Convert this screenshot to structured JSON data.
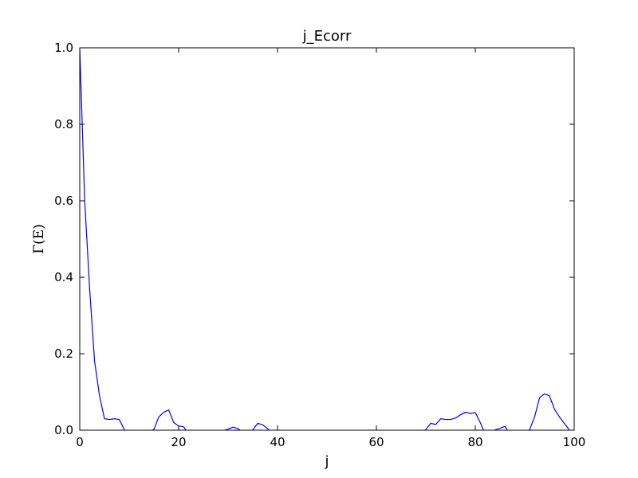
{
  "chart_data": {
    "type": "line",
    "title": "j_Ecorr",
    "xlabel": "j",
    "ylabel": "Γ(E)",
    "xlim": [
      0,
      100
    ],
    "ylim": [
      0.0,
      1.0
    ],
    "xticks": [
      0,
      20,
      40,
      60,
      80,
      100
    ],
    "xtick_labels": [
      "0",
      "20",
      "40",
      "60",
      "80",
      "100"
    ],
    "yticks": [
      0.0,
      0.2,
      0.4,
      0.6,
      0.8,
      1.0
    ],
    "ytick_labels": [
      "0.0",
      "0.2",
      "0.4",
      "0.6",
      "0.8",
      "1.0"
    ],
    "grid": false,
    "line_color": "#0000ff",
    "series": [
      {
        "x": [
          0,
          1,
          2,
          3,
          4,
          5,
          6,
          7,
          8,
          9,
          10,
          11,
          12,
          13,
          14,
          15,
          16,
          17,
          18,
          19,
          20,
          21,
          22,
          23,
          24,
          25,
          26,
          27,
          28,
          29,
          30,
          31,
          32,
          33,
          34,
          35,
          36,
          37,
          38,
          39,
          40,
          41,
          42,
          43,
          44,
          45,
          46,
          47,
          48,
          49,
          50,
          51,
          52,
          53,
          54,
          55,
          56,
          57,
          58,
          59,
          60,
          61,
          62,
          63,
          64,
          65,
          66,
          67,
          68,
          69,
          70,
          71,
          72,
          73,
          74,
          75,
          76,
          77,
          78,
          79,
          80,
          81,
          82,
          83,
          84,
          85,
          86,
          87,
          88,
          89,
          90,
          91,
          92,
          93,
          94,
          95,
          96,
          97,
          98,
          99
        ],
        "values": [
          1.0,
          0.6,
          0.37,
          0.18,
          0.09,
          0.03,
          0.028,
          0.03,
          0.028,
          0.002,
          -0.02,
          -0.03,
          -0.02,
          -0.01,
          -0.005,
          0.002,
          0.035,
          0.047,
          0.053,
          0.02,
          0.011,
          0.009,
          -0.01,
          -0.02,
          -0.025,
          -0.02,
          -0.015,
          -0.01,
          -0.005,
          -0.002,
          0.003,
          0.008,
          0.004,
          -0.005,
          -0.006,
          0.001,
          0.018,
          0.014,
          0.004,
          -0.01,
          -0.02,
          -0.03,
          -0.035,
          -0.04,
          -0.042,
          -0.045,
          -0.048,
          -0.05,
          -0.05,
          -0.05,
          -0.05,
          -0.05,
          -0.05,
          -0.05,
          -0.05,
          -0.05,
          -0.05,
          -0.05,
          -0.05,
          -0.05,
          -0.05,
          -0.05,
          -0.05,
          -0.05,
          -0.05,
          -0.05,
          -0.04,
          -0.03,
          -0.02,
          -0.01,
          0.002,
          0.018,
          0.015,
          0.03,
          0.028,
          0.028,
          0.032,
          0.04,
          0.047,
          0.044,
          0.046,
          0.02,
          -0.01,
          -0.01,
          0.001,
          0.005,
          0.01,
          -0.01,
          -0.02,
          -0.02,
          -0.01,
          0.002,
          0.035,
          0.085,
          0.095,
          0.09,
          0.055,
          0.035,
          0.018,
          0.001
        ]
      }
    ]
  }
}
